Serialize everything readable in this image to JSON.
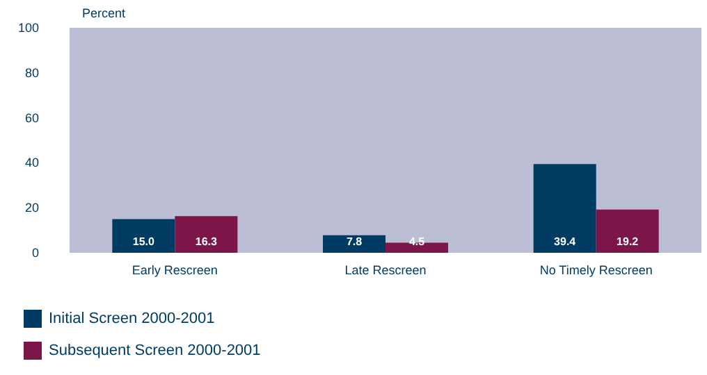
{
  "chart_data": {
    "type": "bar",
    "ylabel": "Percent",
    "categories": [
      "Early Rescreen",
      "Late Rescreen",
      "No Timely Rescreen"
    ],
    "series": [
      {
        "name": "Initial Screen 2000-2001",
        "color": "#003b64",
        "values": [
          15.0,
          7.8,
          39.4
        ],
        "value_labels": [
          "15.0",
          "7.8",
          "39.4"
        ]
      },
      {
        "name": "Subsequent Screen 2000-2001",
        "color": "#7c1648",
        "values": [
          16.3,
          4.5,
          19.2
        ],
        "value_labels": [
          "16.3",
          "4.5",
          "19.2"
        ]
      }
    ],
    "ylim": [
      0,
      100
    ],
    "yticks": [
      0,
      20,
      40,
      60,
      80,
      100
    ],
    "grid": false,
    "legend": "bottom left"
  }
}
